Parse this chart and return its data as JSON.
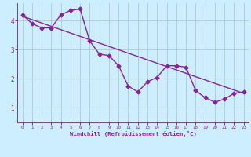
{
  "xlabel": "Windchill (Refroidissement éolien,°C)",
  "bg_color": "#cceeff",
  "grid_color": "#aacccc",
  "line_color": "#882299",
  "spine_color": "#664488",
  "xlim": [
    -0.5,
    23.5
  ],
  "ylim": [
    0.5,
    4.6
  ],
  "xticks": [
    0,
    1,
    2,
    3,
    4,
    5,
    6,
    7,
    8,
    9,
    10,
    11,
    12,
    13,
    14,
    15,
    16,
    17,
    18,
    19,
    20,
    21,
    22,
    23
  ],
  "yticks": [
    1,
    2,
    3,
    4
  ],
  "series1_x": [
    0,
    1,
    2,
    3,
    4,
    5,
    6,
    7,
    8,
    9,
    10,
    11,
    12,
    13,
    14,
    15,
    16,
    17,
    18,
    19,
    20,
    21,
    22,
    23
  ],
  "series1_y": [
    4.2,
    3.9,
    3.75,
    3.75,
    4.2,
    4.35,
    4.4,
    3.3,
    2.85,
    2.8,
    2.45,
    1.75,
    1.55,
    1.9,
    2.05,
    2.45,
    2.45,
    2.4,
    1.6,
    1.35,
    1.2,
    1.3,
    1.5,
    1.55
  ],
  "series2_x": [
    0,
    23
  ],
  "series2_y": [
    4.15,
    1.5
  ],
  "marker": "D",
  "marker_size": 2.5,
  "line_width": 1.0
}
